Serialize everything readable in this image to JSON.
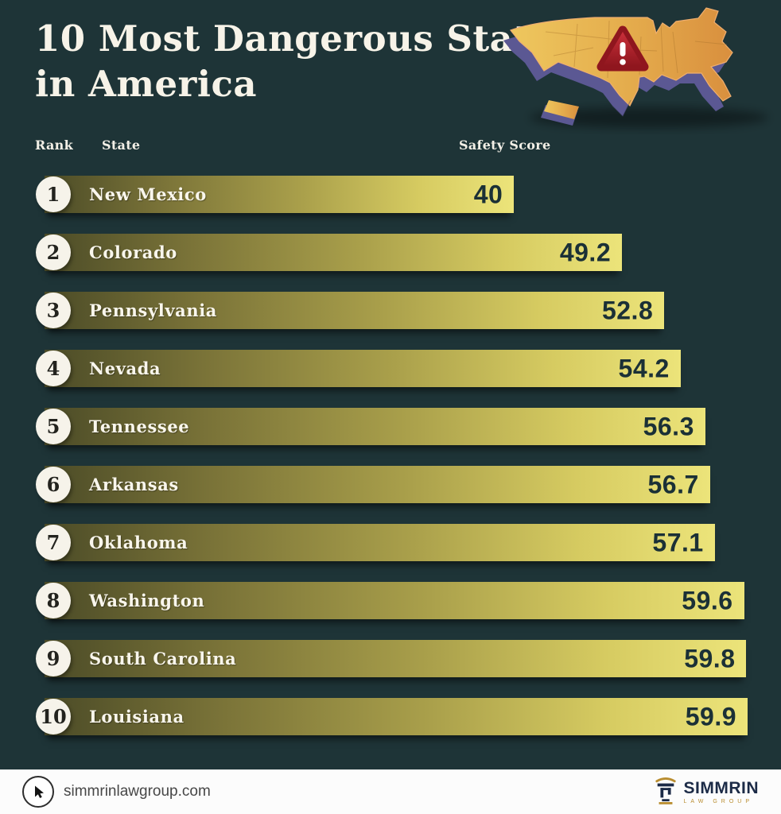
{
  "title": {
    "line1": "10 Most Dangerous States",
    "line2": "in America"
  },
  "columns": {
    "rank": "Rank",
    "state": "State",
    "score": "Safety Score"
  },
  "chart_data": {
    "type": "bar",
    "orientation": "horizontal",
    "title": "10 Most Dangerous States in America",
    "value_label": "Safety Score",
    "value_range": [
      0,
      59.9
    ],
    "categories": [
      "New Mexico",
      "Colorado",
      "Pennsylvania",
      "Nevada",
      "Tennessee",
      "Arkansas",
      "Oklahoma",
      "Washington",
      "South Carolina",
      "Louisiana"
    ],
    "values": [
      40,
      49.2,
      52.8,
      54.2,
      56.3,
      56.7,
      57.1,
      59.6,
      59.8,
      59.9
    ],
    "rows": [
      {
        "rank": "1",
        "state": "New Mexico",
        "score": "40",
        "value": 40
      },
      {
        "rank": "2",
        "state": "Colorado",
        "score": "49.2",
        "value": 49.2
      },
      {
        "rank": "3",
        "state": "Pennsylvania",
        "score": "52.8",
        "value": 52.8
      },
      {
        "rank": "4",
        "state": "Nevada",
        "score": "54.2",
        "value": 54.2
      },
      {
        "rank": "5",
        "state": "Tennessee",
        "score": "56.3",
        "value": 56.3
      },
      {
        "rank": "6",
        "state": "Arkansas",
        "score": "56.7",
        "value": 56.7
      },
      {
        "rank": "7",
        "state": "Oklahoma",
        "score": "57.1",
        "value": 57.1
      },
      {
        "rank": "8",
        "state": "Washington",
        "score": "59.6",
        "value": 59.6
      },
      {
        "rank": "9",
        "state": "South Carolina",
        "score": "59.8",
        "value": 59.8
      },
      {
        "rank": "10",
        "state": "Louisiana",
        "score": "59.9",
        "value": 59.9
      }
    ],
    "legend": null,
    "grid": false
  },
  "icons": {
    "map": "us-map-3d-icon",
    "warning": "warning-triangle-icon",
    "warning_glyph": "!",
    "cursor": "cursor-icon",
    "logo": "simmrin-pillar-icon"
  },
  "footer": {
    "website": "simmrinlawgroup.com",
    "brand_name": "SIMMRIN",
    "brand_subtitle": "LAW GROUP"
  },
  "colors": {
    "background": "#1e3437",
    "bar_gradient_start": "#4b4b27",
    "bar_gradient_end": "#ece47a",
    "score_text": "#1b3036",
    "rank_circle": "#f6f3ea",
    "title_text": "#f7f3e8",
    "map_gold_west": "#eec75e",
    "map_gold_east": "#d98f3e",
    "map_extrusion_purple": "#5b5893",
    "warning_red": "#b2232b",
    "logo_navy": "#1c2b47",
    "logo_gold": "#b98d2f",
    "footer_bg": "#fcfcfc"
  }
}
